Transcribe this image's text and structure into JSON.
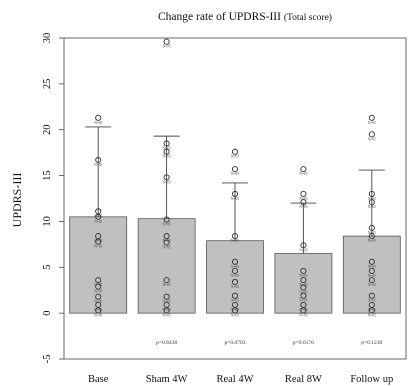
{
  "chart_data": {
    "type": "bar",
    "title": "Change rate of UPDRS-III",
    "title_suffix": "(Total score)",
    "xlabel": "",
    "ylabel": "UPDRS-III",
    "ylim": [
      -5,
      30
    ],
    "yticks": [
      -5,
      0,
      5,
      10,
      15,
      20,
      25,
      30
    ],
    "grid": false,
    "categories": [
      "Base",
      "Sham 4W",
      "Real 4W",
      "Real 8W",
      "Follow up"
    ],
    "values": [
      10.5,
      10.3,
      7.9,
      6.5,
      8.4
    ],
    "error_upper": [
      20.3,
      19.3,
      14.2,
      12.0,
      15.6
    ],
    "p_values": [
      "",
      "p=0.8438",
      "p=0.0703",
      "p=0.0176",
      "p=0.1230"
    ],
    "colors": {
      "bar_fill": "#c0c0c0",
      "bar_stroke": "#555555",
      "error_bar": "#444444",
      "point": "#333333"
    },
    "points": [
      [
        21.3,
        16.7,
        11.1,
        10.5,
        8.4,
        7.8,
        3.6,
        2.9,
        1.8,
        0.9,
        0.3
      ],
      [
        29.6,
        18.5,
        17.6,
        14.8,
        10.2,
        8.4,
        7.7,
        3.6,
        1.8,
        0.9,
        0.3
      ],
      [
        17.6,
        15.7,
        13.0,
        8.4,
        5.6,
        4.6,
        3.4,
        1.9,
        0.9,
        0.3
      ],
      [
        15.7,
        13.0,
        12.1,
        7.4,
        4.6,
        3.6,
        2.8,
        1.9,
        0.9,
        0.3
      ],
      [
        21.3,
        19.5,
        13.0,
        12.1,
        9.3,
        8.4,
        5.6,
        4.6,
        3.6,
        1.9,
        0.9,
        0.3
      ]
    ]
  }
}
